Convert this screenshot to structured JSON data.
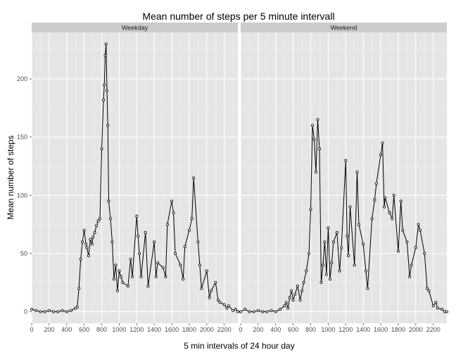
{
  "chart_data": {
    "type": "line",
    "title": "Mean number of steps per 5 minute intervall",
    "xlabel": "5 min intervals of 24 hour day",
    "ylabel": "Mean number of steps",
    "xlim": [
      0,
      2355
    ],
    "ylim": [
      -10,
      240
    ],
    "x_ticks": [
      0,
      200,
      400,
      600,
      800,
      1000,
      1200,
      1400,
      1600,
      1800,
      2000,
      2200
    ],
    "y_ticks": [
      0,
      50,
      100,
      150,
      200
    ],
    "grid": true,
    "panels": [
      {
        "name": "Weekday",
        "x": [
          0,
          50,
          100,
          150,
          200,
          250,
          300,
          350,
          400,
          450,
          500,
          520,
          540,
          560,
          580,
          600,
          620,
          630,
          650,
          670,
          690,
          700,
          720,
          740,
          760,
          780,
          800,
          820,
          830,
          840,
          850,
          860,
          870,
          880,
          900,
          920,
          940,
          960,
          980,
          1000,
          1020,
          1040,
          1100,
          1130,
          1150,
          1200,
          1215,
          1230,
          1250,
          1300,
          1330,
          1400,
          1420,
          1440,
          1500,
          1530,
          1550,
          1600,
          1620,
          1640,
          1700,
          1730,
          1750,
          1800,
          1830,
          1850,
          1900,
          1920,
          1940,
          2000,
          2030,
          2050,
          2100,
          2130,
          2150,
          2200,
          2230,
          2250,
          2300,
          2330,
          2355
        ],
        "y": [
          2,
          1,
          0,
          0,
          1,
          0,
          0,
          1,
          0,
          1,
          3,
          4,
          20,
          45,
          60,
          70,
          58,
          55,
          48,
          62,
          58,
          64,
          68,
          74,
          78,
          80,
          140,
          182,
          195,
          220,
          230,
          190,
          160,
          95,
          80,
          60,
          28,
          40,
          18,
          35,
          30,
          25,
          22,
          45,
          30,
          82,
          65,
          50,
          30,
          68,
          22,
          60,
          30,
          42,
          38,
          30,
          75,
          95,
          85,
          50,
          40,
          28,
          56,
          70,
          80,
          115,
          60,
          40,
          20,
          35,
          12,
          18,
          25,
          10,
          8,
          6,
          3,
          5,
          1,
          2,
          0
        ]
      },
      {
        "name": "Weekend",
        "x": [
          0,
          50,
          100,
          150,
          200,
          250,
          300,
          350,
          400,
          450,
          500,
          520,
          540,
          560,
          580,
          600,
          620,
          650,
          680,
          700,
          720,
          750,
          780,
          800,
          820,
          840,
          860,
          880,
          900,
          920,
          940,
          960,
          980,
          1000,
          1020,
          1040,
          1060,
          1100,
          1130,
          1150,
          1200,
          1215,
          1230,
          1250,
          1300,
          1330,
          1350,
          1400,
          1430,
          1450,
          1500,
          1530,
          1550,
          1600,
          1620,
          1640,
          1650,
          1700,
          1730,
          1750,
          1800,
          1830,
          1850,
          1900,
          1930,
          1950,
          2000,
          2030,
          2050,
          2100,
          2130,
          2150,
          2200,
          2230,
          2250,
          2300,
          2330,
          2355
        ],
        "y": [
          0,
          2,
          0,
          0,
          1,
          0,
          0,
          1,
          0,
          2,
          5,
          8,
          3,
          12,
          18,
          10,
          15,
          22,
          10,
          18,
          25,
          35,
          50,
          88,
          160,
          148,
          120,
          165,
          140,
          25,
          40,
          60,
          32,
          72,
          28,
          42,
          60,
          68,
          35,
          55,
          130,
          65,
          48,
          90,
          40,
          120,
          75,
          58,
          35,
          20,
          80,
          96,
          110,
          135,
          145,
          90,
          98,
          85,
          80,
          100,
          52,
          95,
          70,
          60,
          30,
          40,
          55,
          75,
          70,
          50,
          20,
          18,
          5,
          8,
          3,
          2,
          0,
          0
        ]
      }
    ]
  }
}
